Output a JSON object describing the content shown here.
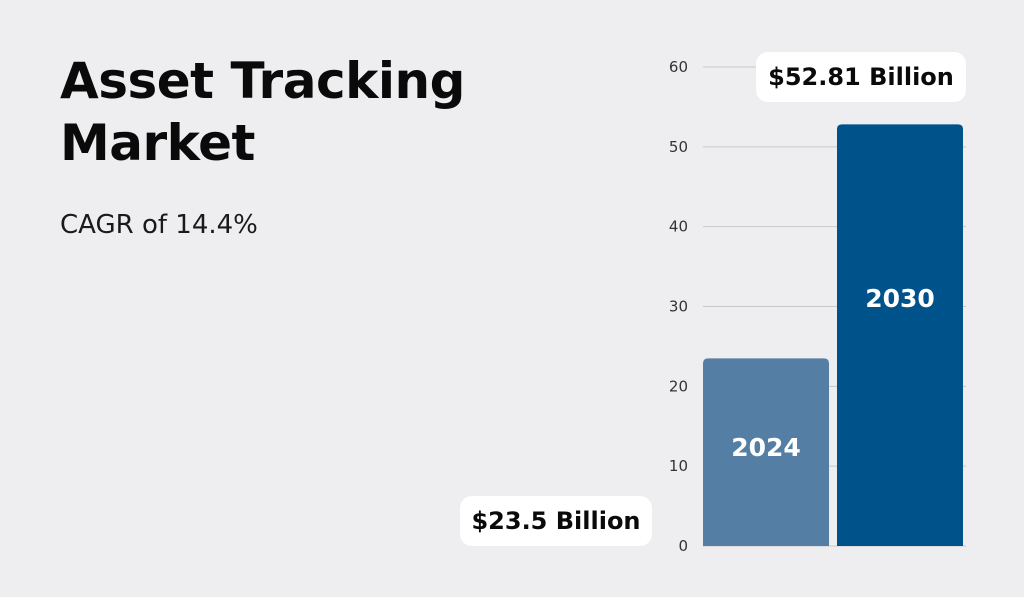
{
  "header": {
    "title_line1": "Asset Tracking",
    "title_line2": "Market",
    "subtitle": "CAGR of 14.4%"
  },
  "callouts": {
    "y2024": "$23.5 Billion",
    "y2030": "$52.81 Billion"
  },
  "colors": {
    "background": "#EEEEF0",
    "bar_2024": "#547EA3",
    "bar_2030": "#00528A",
    "gridline": "#C9C9CC",
    "callout_bg": "#FFFFFF"
  },
  "chart_data": {
    "type": "bar",
    "categories": [
      "2024",
      "2030"
    ],
    "values": [
      23.5,
      52.81
    ],
    "title": "",
    "xlabel": "",
    "ylabel": "",
    "ylim": [
      0,
      60
    ],
    "yticks": [
      0,
      10,
      20,
      30,
      40,
      50,
      60
    ],
    "grid": true,
    "legend": "none"
  }
}
